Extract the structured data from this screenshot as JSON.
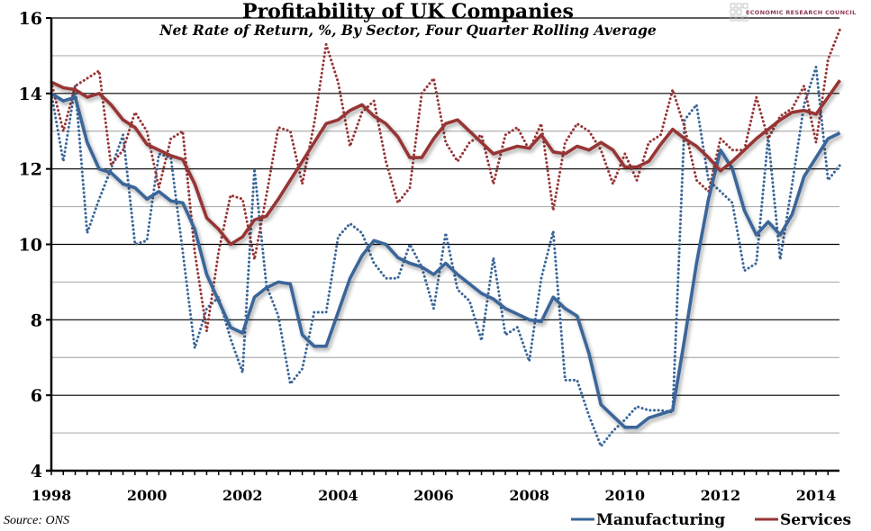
{
  "chart_data": {
    "type": "line",
    "title": "Profitability of UK Companies",
    "subtitle": "Net Rate of Return, %, By Sector, Four Quarter Rolling Average",
    "xlabel": "",
    "ylabel": "",
    "ylim": [
      4,
      16
    ],
    "yticks": [
      4,
      6,
      8,
      10,
      12,
      14,
      16
    ],
    "minor_gridlines": [
      5,
      7,
      9,
      11,
      13,
      15
    ],
    "xlim": [
      1998,
      2014.5
    ],
    "xtick_labels": [
      "1998",
      "2000",
      "2002",
      "2004",
      "2006",
      "2008",
      "2010",
      "2012",
      "2014"
    ],
    "x_start": 1998,
    "x_step": 0.25,
    "grid": true,
    "legend_position": "bottom-right",
    "source": "Source: ONS",
    "logo": "ECONOMIC RESEARCH COUNCIL",
    "colors": {
      "manufacturing": "#3a6699",
      "services": "#973535",
      "axis": "#000000",
      "major_grid": "#000000",
      "minor_grid": "#b0b0b0",
      "logo": "#8c3a55"
    },
    "series": [
      {
        "name": "Manufacturing",
        "style": "solid",
        "color": "#3a6699",
        "values": [
          14.0,
          13.8,
          13.9,
          12.7,
          12.0,
          11.9,
          11.6,
          11.5,
          11.2,
          11.4,
          11.15,
          11.1,
          10.4,
          9.2,
          8.5,
          7.8,
          7.65,
          8.6,
          8.85,
          9.0,
          8.95,
          7.6,
          7.3,
          7.3,
          8.2,
          9.1,
          9.7,
          10.1,
          10.0,
          9.65,
          9.5,
          9.4,
          9.2,
          9.5,
          9.2,
          8.95,
          8.7,
          8.55,
          8.3,
          8.15,
          8.0,
          7.95,
          8.6,
          8.3,
          8.1,
          7.1,
          5.75,
          5.45,
          5.15,
          5.15,
          5.4,
          5.5,
          5.6,
          7.5,
          9.5,
          11.2,
          12.5,
          12.0,
          10.9,
          10.25,
          10.6,
          10.25,
          10.8,
          11.8,
          12.3,
          12.8,
          12.95
        ]
      },
      {
        "name": "Services",
        "style": "solid",
        "color": "#973535",
        "values": [
          14.3,
          14.15,
          14.1,
          13.9,
          14.0,
          13.7,
          13.3,
          13.1,
          12.65,
          12.5,
          12.35,
          12.25,
          11.6,
          10.7,
          10.4,
          10.0,
          10.2,
          10.65,
          10.75,
          11.2,
          11.7,
          12.2,
          12.7,
          13.2,
          13.3,
          13.55,
          13.7,
          13.4,
          13.2,
          12.85,
          12.3,
          12.3,
          12.8,
          13.2,
          13.3,
          13.0,
          12.7,
          12.4,
          12.5,
          12.6,
          12.55,
          12.9,
          12.45,
          12.4,
          12.6,
          12.5,
          12.7,
          12.5,
          12.05,
          12.05,
          12.2,
          12.65,
          13.05,
          12.8,
          12.6,
          12.3,
          11.95,
          12.2,
          12.5,
          12.8,
          13.05,
          13.3,
          13.5,
          13.55,
          13.45,
          13.9,
          14.35
        ]
      },
      {
        "name": "Manufacturing (quarterly)",
        "style": "dotted",
        "color": "#3a6699",
        "values": [
          14.0,
          12.2,
          14.2,
          10.3,
          11.2,
          12.0,
          12.9,
          10.0,
          10.1,
          12.4,
          12.3,
          9.8,
          7.25,
          8.3,
          8.6,
          7.5,
          6.6,
          12.0,
          8.9,
          8.1,
          6.3,
          6.7,
          8.2,
          8.2,
          10.2,
          10.55,
          10.3,
          9.5,
          9.1,
          9.1,
          10.0,
          9.4,
          8.3,
          10.3,
          8.8,
          8.5,
          7.45,
          9.65,
          7.6,
          7.8,
          6.9,
          9.1,
          10.35,
          6.4,
          6.4,
          5.45,
          4.65,
          5.05,
          5.35,
          5.7,
          5.6,
          5.6,
          5.55,
          13.3,
          13.7,
          11.7,
          11.4,
          11.1,
          9.3,
          9.5,
          12.85,
          9.6,
          11.6,
          13.7,
          14.7,
          11.7,
          12.1
        ]
      },
      {
        "name": "Services (quarterly)",
        "style": "dotted",
        "color": "#973535",
        "values": [
          14.3,
          13.0,
          14.2,
          14.4,
          14.6,
          12.1,
          12.5,
          13.5,
          13.0,
          11.5,
          12.8,
          13.0,
          9.8,
          7.7,
          9.8,
          11.3,
          11.2,
          9.6,
          11.3,
          13.1,
          13.0,
          11.6,
          13.2,
          15.3,
          14.3,
          12.6,
          13.5,
          13.8,
          12.2,
          11.1,
          11.5,
          14.0,
          14.4,
          12.7,
          12.2,
          12.7,
          12.9,
          11.6,
          12.9,
          13.1,
          12.5,
          13.2,
          10.9,
          12.7,
          13.2,
          13.0,
          12.5,
          11.6,
          12.4,
          11.7,
          12.7,
          12.9,
          14.1,
          13.1,
          11.7,
          11.4,
          12.8,
          12.5,
          12.5,
          13.9,
          12.8,
          13.4,
          13.6,
          14.2,
          12.7,
          14.9,
          15.7
        ]
      }
    ],
    "legend": [
      {
        "label": "Manufacturing",
        "color": "#3a6699"
      },
      {
        "label": "Services",
        "color": "#973535"
      }
    ]
  }
}
